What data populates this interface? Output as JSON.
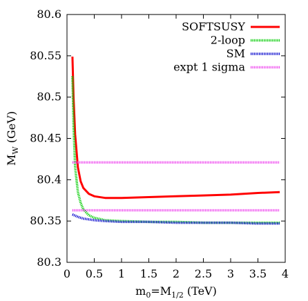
{
  "chart_data": {
    "type": "line",
    "xlabel": "m0=M1/2 (TeV)",
    "ylabel": "MW (GeV)",
    "xlim": [
      0,
      4
    ],
    "ylim": [
      80.3,
      80.6
    ],
    "x_ticks": [
      0,
      0.5,
      1,
      1.5,
      2,
      2.5,
      3,
      3.5,
      4
    ],
    "x_tick_labels": [
      "0",
      "0.5",
      "1",
      "1.5",
      "2",
      "2.5",
      "3",
      "3.5",
      "4"
    ],
    "y_ticks": [
      80.3,
      80.35,
      80.4,
      80.45,
      80.5,
      80.55,
      80.6
    ],
    "y_tick_labels": [
      "80.3",
      "80.35",
      "80.4",
      "80.45",
      "80.5",
      "80.55",
      "80.6"
    ],
    "grid": false,
    "legend_position": "top-right",
    "series": [
      {
        "name": "SOFTSUSY",
        "color": "#ff0000",
        "style": "solid",
        "x": [
          0.1,
          0.12,
          0.15,
          0.2,
          0.25,
          0.3,
          0.4,
          0.5,
          0.7,
          1.0,
          1.5,
          2.0,
          2.5,
          3.0,
          3.5,
          3.9
        ],
        "y": [
          80.549,
          80.5,
          80.455,
          80.415,
          80.398,
          80.39,
          80.383,
          80.38,
          80.378,
          80.378,
          80.379,
          80.38,
          80.381,
          80.382,
          80.384,
          80.385
        ]
      },
      {
        "name": "2-loop",
        "color": "#00cc00",
        "style": "dotted",
        "x": [
          0.1,
          0.12,
          0.15,
          0.2,
          0.25,
          0.3,
          0.4,
          0.5,
          0.7,
          1.0,
          1.5,
          2.0,
          2.5,
          3.0,
          3.5,
          3.9
        ],
        "y": [
          80.525,
          80.465,
          80.415,
          80.385,
          80.372,
          80.364,
          80.357,
          80.354,
          80.351,
          80.35,
          80.349,
          80.349,
          80.348,
          80.348,
          80.348,
          80.348
        ]
      },
      {
        "name": "SM",
        "color": "#0000cc",
        "style": "dotted",
        "x": [
          0.1,
          0.2,
          0.3,
          0.4,
          0.5,
          0.7,
          1.0,
          1.5,
          2.0,
          2.5,
          3.0,
          3.5,
          3.9
        ],
        "y": [
          80.358,
          80.355,
          80.353,
          80.352,
          80.351,
          80.35,
          80.349,
          80.349,
          80.348,
          80.348,
          80.348,
          80.347,
          80.347
        ]
      },
      {
        "name": "expt 1 sigma",
        "color": "#ee44ee",
        "style": "dotted",
        "bands": [
          80.421,
          80.363
        ],
        "x": [
          0.1,
          3.9
        ]
      }
    ]
  }
}
